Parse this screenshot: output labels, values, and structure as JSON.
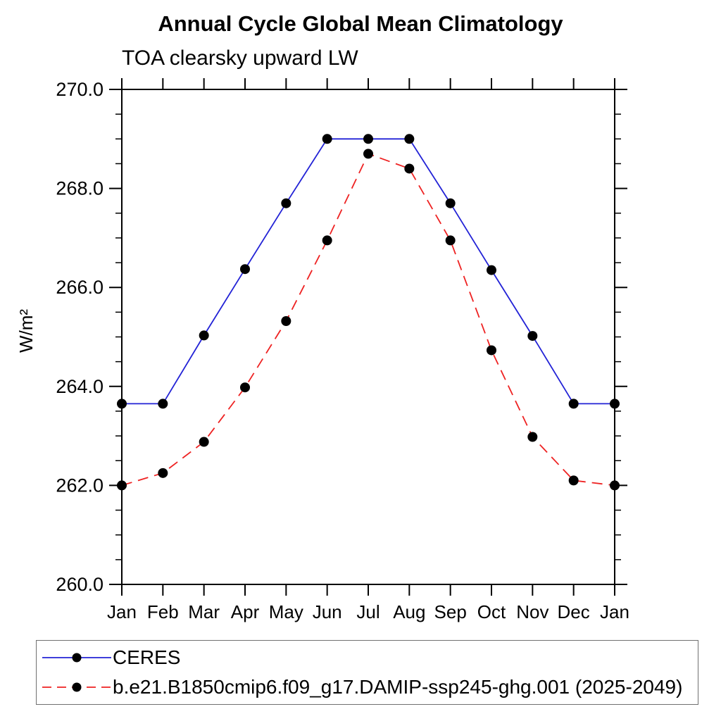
{
  "chart_data": {
    "type": "line",
    "title": "Annual Cycle Global Mean Climatology",
    "subtitle": "TOA clearsky upward LW",
    "ylabel": "W/m²",
    "xlabel": "",
    "categories": [
      "Jan",
      "Feb",
      "Mar",
      "Apr",
      "May",
      "Jun",
      "Jul",
      "Aug",
      "Sep",
      "Oct",
      "Nov",
      "Dec",
      "Jan"
    ],
    "ylim": [
      260.0,
      270.0
    ],
    "ytick_major_step": 2.0,
    "ytick_minor_step": 0.5,
    "ytick_labels": [
      "260.0",
      "262.0",
      "264.0",
      "266.0",
      "268.0",
      "270.0"
    ],
    "grid": false,
    "legend_position": "bottom",
    "frame_color": "#000000",
    "marker_color": "#000000",
    "series": [
      {
        "name": "CERES",
        "color": "#2222d6",
        "style": "solid",
        "marker": "filled-circle",
        "values": [
          263.65,
          263.65,
          265.03,
          266.37,
          267.7,
          269.0,
          269.0,
          269.0,
          267.7,
          266.35,
          265.02,
          263.65,
          263.65
        ]
      },
      {
        "name": "b.e21.B1850cmip6.f09_g17.DAMIP-ssp245-ghg.001 (2025-2049)",
        "color": "#ee2222",
        "style": "dashed",
        "marker": "filled-circle",
        "values": [
          262.0,
          262.25,
          262.88,
          263.98,
          265.32,
          266.95,
          268.7,
          268.4,
          266.95,
          264.73,
          262.98,
          262.1,
          262.0
        ]
      }
    ]
  }
}
